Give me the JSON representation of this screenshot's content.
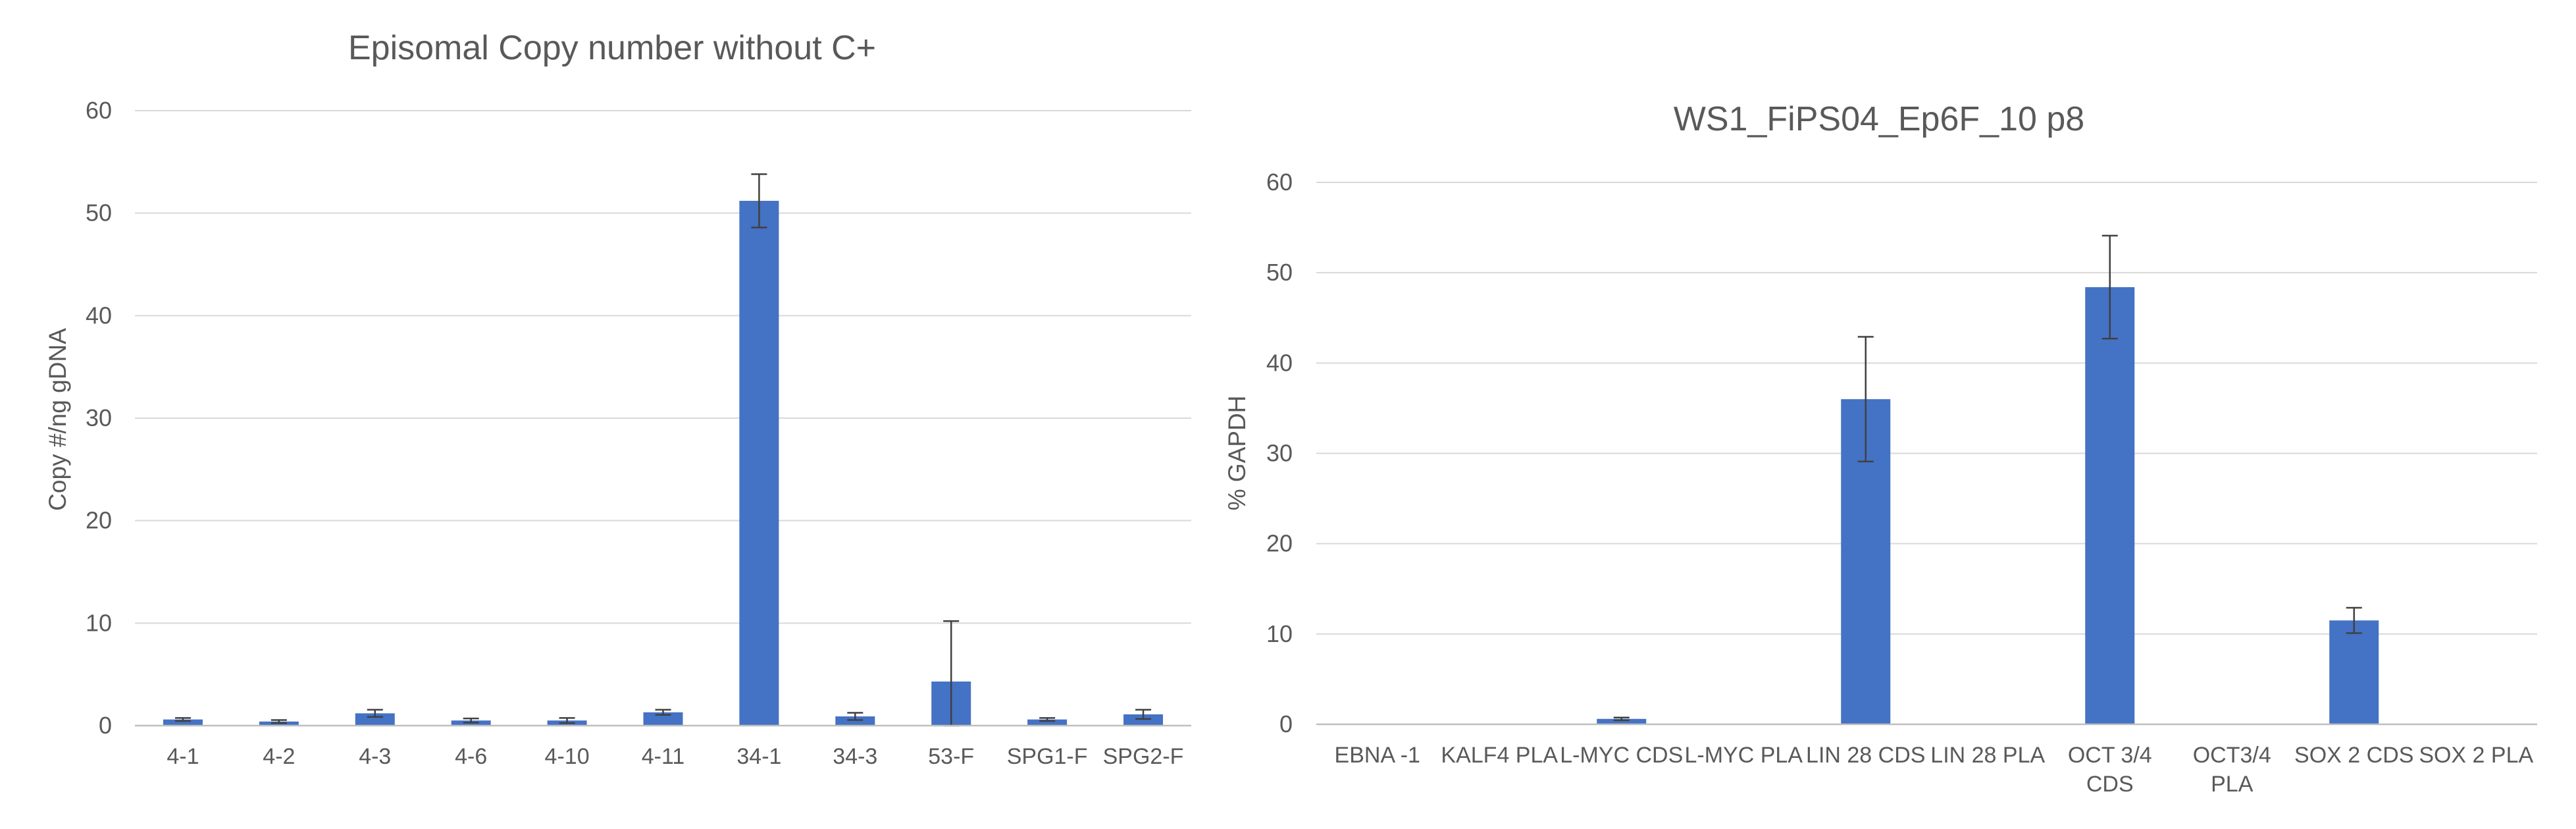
{
  "chart_data": [
    {
      "type": "bar",
      "title": "Episomal Copy number without C+",
      "xlabel": "",
      "ylabel": "Copy #/ng gDNA",
      "ylim": [
        0,
        60
      ],
      "yticks": [
        0,
        10,
        20,
        30,
        40,
        50,
        60
      ],
      "grid": true,
      "legend": "none",
      "bar_color": "#4472c4",
      "categories": [
        "4-1",
        "4-2",
        "4-3",
        "4-6",
        "4-10",
        "4-11",
        "34-1",
        "34-3",
        "53-F",
        "SPG1-F",
        "SPG2-F"
      ],
      "values": [
        0.6,
        0.4,
        1.2,
        0.5,
        0.5,
        1.3,
        51.2,
        0.9,
        4.3,
        0.6,
        1.1
      ],
      "error": [
        0.15,
        0.15,
        0.35,
        0.2,
        0.25,
        0.25,
        2.6,
        0.35,
        5.9,
        0.15,
        0.45
      ]
    },
    {
      "type": "bar",
      "title": "WS1_FiPS04_Ep6F_10 p8",
      "xlabel": "",
      "ylabel": "% GAPDH",
      "ylim": [
        0,
        60
      ],
      "yticks": [
        0,
        10,
        20,
        30,
        40,
        50,
        60
      ],
      "grid": true,
      "legend": "none",
      "bar_color": "#4472c4",
      "categories": [
        [
          "EBNA -1"
        ],
        [
          "KALF4 PLA"
        ],
        [
          "L-MYC CDS"
        ],
        [
          "L-MYC PLA"
        ],
        [
          "LIN 28 CDS"
        ],
        [
          "LIN 28 PLA"
        ],
        [
          "OCT 3/4",
          "CDS"
        ],
        [
          "OCT3/4",
          "PLA"
        ],
        [
          "SOX 2 CDS"
        ],
        [
          "SOX 2 PLA"
        ]
      ],
      "values": [
        0,
        0,
        0.6,
        0,
        36.0,
        0,
        48.4,
        0,
        11.5,
        0
      ],
      "error": [
        0,
        0,
        0.15,
        0,
        6.9,
        0,
        5.7,
        0,
        1.4,
        0
      ]
    }
  ]
}
